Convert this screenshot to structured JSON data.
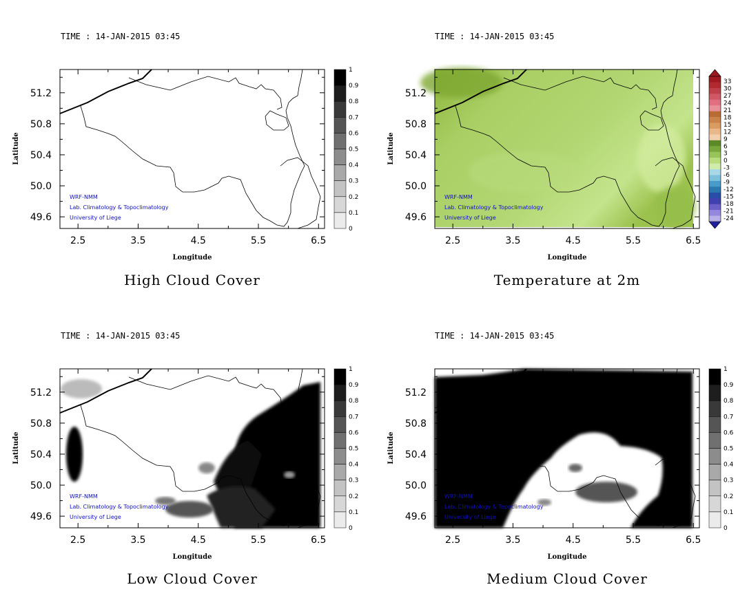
{
  "credits": [
    "WRF-NMM",
    "Lab. Climatology & Topoclimatology",
    "University of Liege"
  ],
  "axes": {
    "xlabel": "Longitude",
    "ylabel": "Latitude",
    "xticks": [
      "2.5",
      "3.5",
      "4.5",
      "5.5",
      "6.5"
    ],
    "yticks": [
      "51.2",
      "50.8",
      "50.4",
      "50.0",
      "49.6"
    ]
  },
  "cloud_scale": [
    "1",
    "0.9",
    "0.8",
    "0.7",
    "0.6",
    "0.5",
    "0.4",
    "0.3",
    "0.2",
    "0.1",
    "0"
  ],
  "temp_scale": [
    "33",
    "30",
    "27",
    "24",
    "21",
    "18",
    "15",
    "12",
    "9",
    "6",
    "3",
    "0",
    "-3",
    "-6",
    "-9",
    "-12",
    "-15",
    "-18",
    "-21",
    "-24"
  ],
  "colors": {
    "credit_text": "#1010c0",
    "temp_green_dark": "#7ea832",
    "temp_green_light": "#b5d97a",
    "cloud_black": "#000000"
  },
  "chart_data": [
    {
      "type": "heatmap",
      "variable": "high_cloud",
      "time": "TIME : 14-JAN-2015 03:45",
      "title": "High Cloud Cover",
      "xlabel": "Longitude",
      "ylabel": "Latitude",
      "xlim": [
        2.2,
        6.6
      ],
      "ylim": [
        49.45,
        51.5
      ],
      "colorbar": "cloud_scale",
      "summary_level": 0.0
    },
    {
      "type": "heatmap",
      "variable": "temperature_2m",
      "time": "TIME : 14-JAN-2015 03:45",
      "title": "Temperature at 2m",
      "xlabel": "Longitude",
      "ylabel": "Latitude",
      "xlim": [
        2.2,
        6.6
      ],
      "ylim": [
        49.45,
        51.5
      ],
      "colorbar": "temp_scale",
      "value_range": [
        3,
        9
      ]
    },
    {
      "type": "heatmap",
      "variable": "low_cloud",
      "time": "TIME : 14-JAN-2015 03:45",
      "title": "Low Cloud Cover",
      "xlabel": "Longitude",
      "ylabel": "Latitude",
      "xlim": [
        2.2,
        6.6
      ],
      "ylim": [
        49.45,
        51.5
      ],
      "colorbar": "cloud_scale",
      "summary_level": 0.3
    },
    {
      "type": "heatmap",
      "variable": "medium_cloud",
      "time": "TIME : 14-JAN-2015 03:45",
      "title": "Medium Cloud Cover",
      "xlabel": "Longitude",
      "ylabel": "Latitude",
      "xlim": [
        2.2,
        6.6
      ],
      "ylim": [
        49.45,
        51.5
      ],
      "colorbar": "cloud_scale",
      "summary_level": 0.8
    }
  ]
}
